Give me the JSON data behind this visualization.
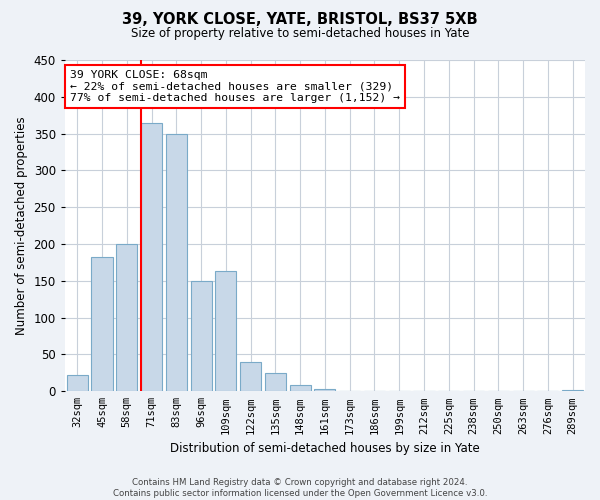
{
  "title": "39, YORK CLOSE, YATE, BRISTOL, BS37 5XB",
  "subtitle": "Size of property relative to semi-detached houses in Yate",
  "xlabel": "Distribution of semi-detached houses by size in Yate",
  "ylabel": "Number of semi-detached properties",
  "bar_color": "#c8d8e8",
  "bar_edge_color": "#7aaac8",
  "categories": [
    "32sqm",
    "45sqm",
    "58sqm",
    "71sqm",
    "83sqm",
    "96sqm",
    "109sqm",
    "122sqm",
    "135sqm",
    "148sqm",
    "161sqm",
    "173sqm",
    "186sqm",
    "199sqm",
    "212sqm",
    "225sqm",
    "238sqm",
    "250sqm",
    "263sqm",
    "276sqm",
    "289sqm"
  ],
  "values": [
    22,
    183,
    200,
    365,
    350,
    150,
    163,
    40,
    25,
    8,
    3,
    0,
    0,
    0,
    0,
    0,
    0,
    0,
    0,
    0,
    2
  ],
  "ylim": [
    0,
    450
  ],
  "yticks": [
    0,
    50,
    100,
    150,
    200,
    250,
    300,
    350,
    400,
    450
  ],
  "property_line_idx": 3,
  "annotation_title": "39 YORK CLOSE: 68sqm",
  "annotation_line1": "← 22% of semi-detached houses are smaller (329)",
  "annotation_line2": "77% of semi-detached houses are larger (1,152) →",
  "footer_line1": "Contains HM Land Registry data © Crown copyright and database right 2024.",
  "footer_line2": "Contains public sector information licensed under the Open Government Licence v3.0.",
  "background_color": "#eef2f7",
  "plot_bg_color": "#ffffff",
  "grid_color": "#c8d0da"
}
